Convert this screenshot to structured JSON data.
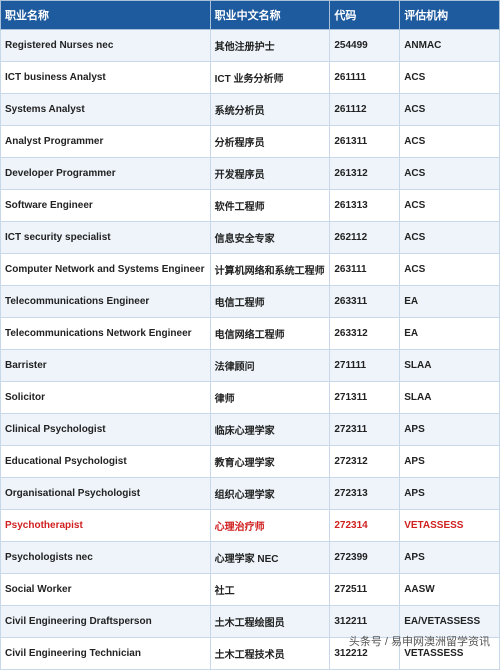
{
  "table": {
    "columns": [
      "职业名称",
      "职业中文名称",
      "代码",
      "评估机构"
    ],
    "column_widths": [
      "42%",
      "24%",
      "14%",
      "20%"
    ],
    "header_bg": "#1e5a9e",
    "header_color": "#ffffff",
    "row_bg_even": "#ffffff",
    "row_bg_odd": "#eef4fa",
    "border_color": "#c8d8e8",
    "highlight_color": "#d02020",
    "font_size_header": 11,
    "font_size_cell": 10,
    "rows": [
      {
        "en": "Registered Nurses nec",
        "cn": "其他注册护士",
        "code": "254499",
        "org": "ANMAC",
        "highlight": false
      },
      {
        "en": "ICT business Analyst",
        "cn": "ICT 业务分析师",
        "code": "261111",
        "org": "ACS",
        "highlight": false
      },
      {
        "en": "Systems Analyst",
        "cn": "系统分析员",
        "code": "261112",
        "org": "ACS",
        "highlight": false
      },
      {
        "en": "Analyst Programmer",
        "cn": "分析程序员",
        "code": "261311",
        "org": "ACS",
        "highlight": false
      },
      {
        "en": "Developer Programmer",
        "cn": "开发程序员",
        "code": "261312",
        "org": "ACS",
        "highlight": false
      },
      {
        "en": "Software Engineer",
        "cn": "软件工程师",
        "code": "261313",
        "org": "ACS",
        "highlight": false
      },
      {
        "en": "ICT security specialist",
        "cn": "信息安全专家",
        "code": "262112",
        "org": "ACS",
        "highlight": false
      },
      {
        "en": "Computer Network and Systems Engineer",
        "cn": "计算机网络和系统工程师",
        "code": "263111",
        "org": "ACS",
        "highlight": false
      },
      {
        "en": "Telecommunications Engineer",
        "cn": "电信工程师",
        "code": "263311",
        "org": "EA",
        "highlight": false
      },
      {
        "en": "Telecommunications Network Engineer",
        "cn": "电信网络工程师",
        "code": "263312",
        "org": "EA",
        "highlight": false
      },
      {
        "en": "Barrister",
        "cn": "法律顾问",
        "code": "271111",
        "org": "SLAA",
        "highlight": false
      },
      {
        "en": "Solicitor",
        "cn": "律师",
        "code": "271311",
        "org": "SLAA",
        "highlight": false
      },
      {
        "en": "Clinical Psychologist",
        "cn": "临床心理学家",
        "code": "272311",
        "org": "APS",
        "highlight": false
      },
      {
        "en": "Educational Psychologist",
        "cn": "教育心理学家",
        "code": "272312",
        "org": "APS",
        "highlight": false
      },
      {
        "en": "Organisational Psychologist",
        "cn": "组织心理学家",
        "code": "272313",
        "org": "APS",
        "highlight": false
      },
      {
        "en": "Psychotherapist",
        "cn": "心理治疗师",
        "code": "272314",
        "org": "VETASSESS",
        "highlight": true
      },
      {
        "en": "Psychologists nec",
        "cn": "心理学家 NEC",
        "code": "272399",
        "org": "APS",
        "highlight": false
      },
      {
        "en": "Social Worker",
        "cn": "社工",
        "code": "272511",
        "org": "AASW",
        "highlight": false
      },
      {
        "en": "Civil Engineering Draftsperson",
        "cn": "土木工程绘图员",
        "code": "312211",
        "org": "EA/VETASSESS",
        "highlight": false
      },
      {
        "en": "Civil Engineering Technician",
        "cn": "土木工程技术员",
        "code": "312212",
        "org": "VETASSESS",
        "highlight": false
      }
    ]
  },
  "footer": "头条号 / 易申网澳洲留学资讯"
}
